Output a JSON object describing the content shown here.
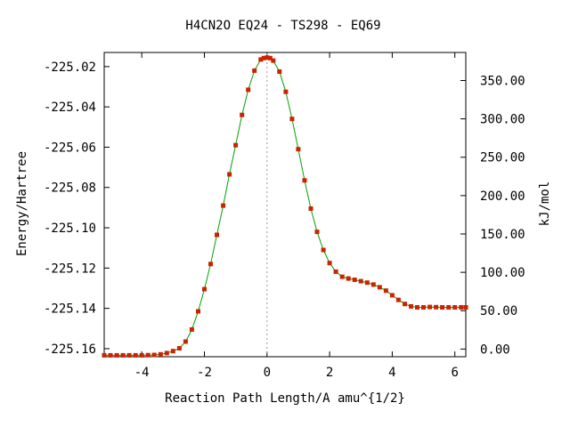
{
  "chart_data": {
    "type": "line",
    "title": "H4CN2O   EQ24 - TS298 - EQ69",
    "xlabel": "Reaction Path Length/A amu^{1/2}",
    "ylabel": "Energy/Hartree",
    "y2label": "kJ/mol",
    "xlim": [
      -5.2,
      6.35
    ],
    "ylim": [
      -225.164,
      -225.013
    ],
    "y2lim": [
      -10.0,
      386.5
    ],
    "x_ticks": [
      -4,
      -2,
      0,
      2,
      4,
      6
    ],
    "x_tick_labels": [
      "-4",
      "-2",
      "0",
      "2",
      "4",
      "6"
    ],
    "y_ticks": [
      -225.16,
      -225.14,
      -225.12,
      -225.1,
      -225.08,
      -225.06,
      -225.04,
      -225.02
    ],
    "y_tick_labels": [
      "-225.16",
      "-225.14",
      "-225.12",
      "-225.10",
      "-225.08",
      "-225.06",
      "-225.04",
      "-225.02"
    ],
    "y2_ticks": [
      0,
      50,
      100,
      150,
      200,
      250,
      300,
      350
    ],
    "y2_tick_labels": [
      "0.00",
      "50.00",
      "100.00",
      "150.00",
      "200.00",
      "250.00",
      "300.00",
      "350.00"
    ],
    "ts_x": 0.0,
    "grid": false,
    "legend": "none",
    "line_color": "#00a000",
    "marker_color": "#cc2200",
    "ts_line_color": "#999999",
    "series": [
      {
        "x": [
          -5.2,
          -5.0,
          -4.8,
          -4.6,
          -4.4,
          -4.2,
          -4.0,
          -3.8,
          -3.6,
          -3.4,
          -3.2,
          -3.0,
          -2.8,
          -2.6,
          -2.4,
          -2.2,
          -2.0,
          -1.8,
          -1.6,
          -1.4,
          -1.2,
          -1.0,
          -0.8,
          -0.6,
          -0.4,
          -0.2,
          -0.1,
          0.0,
          0.1,
          0.2,
          0.4,
          0.6,
          0.8,
          1.0,
          1.2,
          1.4,
          1.6,
          1.8,
          2.0,
          2.2,
          2.4,
          2.6,
          2.8,
          3.0,
          3.2,
          3.4,
          3.6,
          3.8,
          4.0,
          4.2,
          4.4,
          4.6,
          4.8,
          5.0,
          5.2,
          5.4,
          5.6,
          5.8,
          6.0,
          6.2,
          6.35
        ],
        "y": [
          -225.1633,
          -225.1633,
          -225.1633,
          -225.1633,
          -225.1633,
          -225.1633,
          -225.1633,
          -225.1632,
          -225.1631,
          -225.1628,
          -225.1622,
          -225.1612,
          -225.1598,
          -225.1565,
          -225.1505,
          -225.1415,
          -225.1305,
          -225.118,
          -225.1035,
          -225.089,
          -225.0735,
          -225.059,
          -225.044,
          -225.0315,
          -225.022,
          -225.0165,
          -225.0158,
          -225.0155,
          -225.0158,
          -225.017,
          -225.0225,
          -225.0325,
          -225.046,
          -225.061,
          -225.0765,
          -225.0905,
          -225.102,
          -225.111,
          -225.1175,
          -225.1218,
          -225.1243,
          -225.1252,
          -225.1258,
          -225.1265,
          -225.1272,
          -225.1282,
          -225.1295,
          -225.1312,
          -225.1335,
          -225.1358,
          -225.1378,
          -225.139,
          -225.1395,
          -225.1395,
          -225.1393,
          -225.1394,
          -225.1395,
          -225.1395,
          -225.1395,
          -225.1395,
          -225.1395
        ]
      }
    ]
  }
}
